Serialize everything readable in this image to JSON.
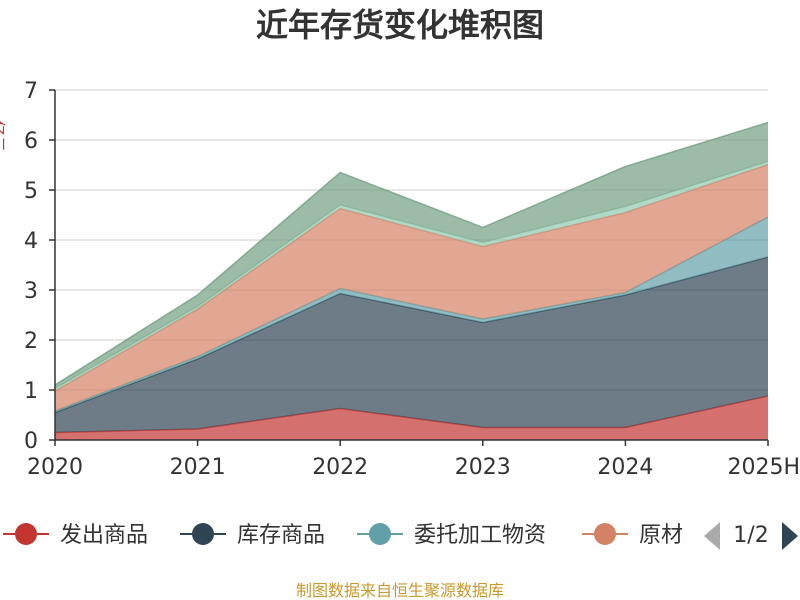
{
  "title": "近年存货变化堆积图",
  "source_note": "制图数据来自恒生聚源数据库",
  "legend": {
    "page_indicator": "1/2",
    "prev_icon": "triangle-left-icon",
    "next_icon": "triangle-right-icon"
  },
  "chart_data": {
    "type": "area",
    "stacked": true,
    "categories": [
      "2020",
      "2021",
      "2022",
      "2023",
      "2024",
      "2025H"
    ],
    "ylim": [
      0,
      7
    ],
    "yticks": [
      "0",
      "1",
      "2",
      "3",
      "4",
      "5",
      "6",
      "7"
    ],
    "ylabel_visible_fragment": "亿元",
    "grid": true,
    "legend_position": "bottom",
    "series": [
      {
        "name": "发出商品",
        "color": "#c23531",
        "values": [
          0.15,
          0.22,
          0.63,
          0.25,
          0.25,
          0.88
        ]
      },
      {
        "name": "库存商品",
        "color": "#2f4554",
        "values": [
          0.4,
          1.4,
          2.3,
          2.1,
          2.65,
          2.78
        ]
      },
      {
        "name": "委托加工物资",
        "color": "#61a0a8",
        "values": [
          0.03,
          0.05,
          0.1,
          0.07,
          0.05,
          0.8
        ]
      },
      {
        "name": "原材料",
        "color": "#d48265",
        "values": [
          0.4,
          0.95,
          1.6,
          1.45,
          1.6,
          1.05
        ]
      },
      {
        "name": "",
        "color": "#91c7ae",
        "values": [
          0.05,
          0.05,
          0.07,
          0.08,
          0.12,
          0.06
        ]
      },
      {
        "name": "",
        "color": "#749f83",
        "values": [
          0.07,
          0.23,
          0.65,
          0.3,
          0.8,
          0.78
        ]
      }
    ]
  }
}
